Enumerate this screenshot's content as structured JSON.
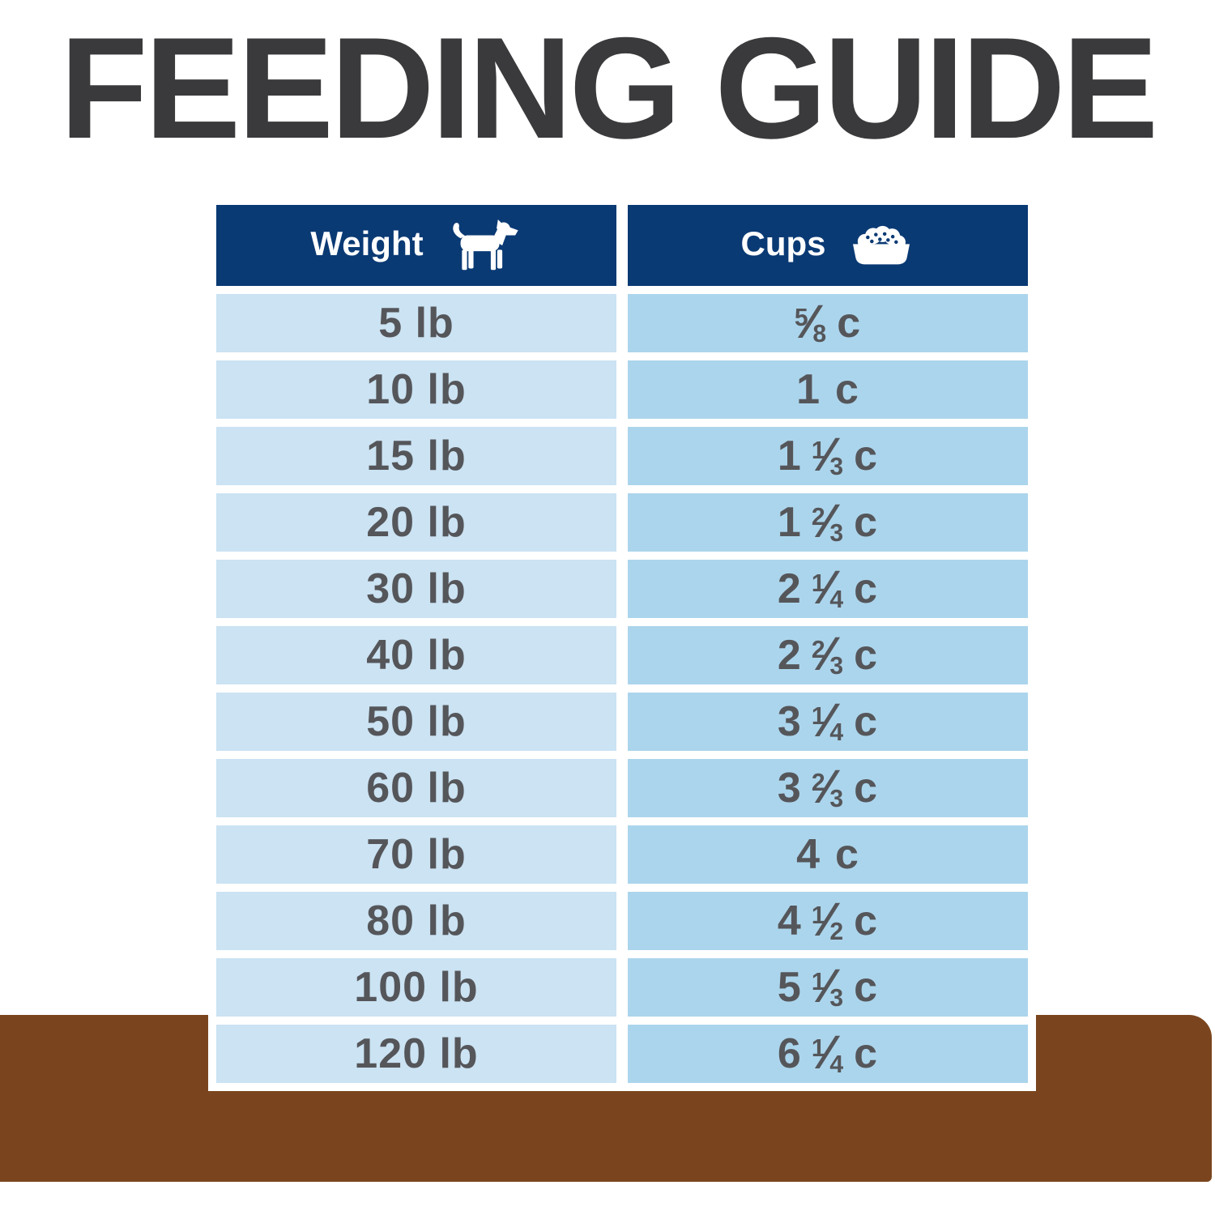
{
  "title": "FEEDING GUIDE",
  "colors": {
    "title_color": "#3a3a3c",
    "header_bg": "#0a3a74",
    "header_text": "#ffffff",
    "row_left_bg": "#cbe3f3",
    "row_right_bg": "#abd5ec",
    "cell_text": "#55565a",
    "brown_bar": "#7a451e"
  },
  "table": {
    "columns": [
      {
        "label": "Weight",
        "icon": "dog-icon"
      },
      {
        "label": "Cups",
        "icon": "food-bowl-icon"
      }
    ],
    "rows": [
      {
        "weight": "5 lb",
        "cups": {
          "whole": "",
          "num": "5",
          "den": "8",
          "unit": "c"
        }
      },
      {
        "weight": "10 lb",
        "cups": {
          "whole": "1",
          "num": "",
          "den": "",
          "unit": "c"
        }
      },
      {
        "weight": "15 lb",
        "cups": {
          "whole": "1",
          "num": "1",
          "den": "3",
          "unit": "c"
        }
      },
      {
        "weight": "20 lb",
        "cups": {
          "whole": "1",
          "num": "2",
          "den": "3",
          "unit": "c"
        }
      },
      {
        "weight": "30 lb",
        "cups": {
          "whole": "2",
          "num": "1",
          "den": "4",
          "unit": "c"
        }
      },
      {
        "weight": "40 lb",
        "cups": {
          "whole": "2",
          "num": "2",
          "den": "3",
          "unit": "c"
        }
      },
      {
        "weight": "50 lb",
        "cups": {
          "whole": "3",
          "num": "1",
          "den": "4",
          "unit": "c"
        }
      },
      {
        "weight": "60 lb",
        "cups": {
          "whole": "3",
          "num": "2",
          "den": "3",
          "unit": "c"
        }
      },
      {
        "weight": "70 lb",
        "cups": {
          "whole": "4",
          "num": "",
          "den": "",
          "unit": "c"
        }
      },
      {
        "weight": "80 lb",
        "cups": {
          "whole": "4",
          "num": "1",
          "den": "2",
          "unit": "c"
        }
      },
      {
        "weight": "100 lb",
        "cups": {
          "whole": "5",
          "num": "1",
          "den": "3",
          "unit": "c"
        }
      },
      {
        "weight": "120 lb",
        "cups": {
          "whole": "6",
          "num": "1",
          "den": "4",
          "unit": "c"
        }
      }
    ]
  },
  "chart_data": {
    "type": "table",
    "title": "FEEDING GUIDE",
    "columns": [
      "Weight",
      "Cups"
    ],
    "rows": [
      [
        "5 lb",
        "5/8 c"
      ],
      [
        "10 lb",
        "1 c"
      ],
      [
        "15 lb",
        "1 1/3 c"
      ],
      [
        "20 lb",
        "1 2/3 c"
      ],
      [
        "30 lb",
        "2 1/4 c"
      ],
      [
        "40 lb",
        "2 2/3 c"
      ],
      [
        "50 lb",
        "3 1/4 c"
      ],
      [
        "60 lb",
        "3 2/3 c"
      ],
      [
        "70 lb",
        "4 c"
      ],
      [
        "80 lb",
        "4 1/2 c"
      ],
      [
        "100 lb",
        "5 1/3 c"
      ],
      [
        "120 lb",
        "6 1/4 c"
      ]
    ]
  }
}
